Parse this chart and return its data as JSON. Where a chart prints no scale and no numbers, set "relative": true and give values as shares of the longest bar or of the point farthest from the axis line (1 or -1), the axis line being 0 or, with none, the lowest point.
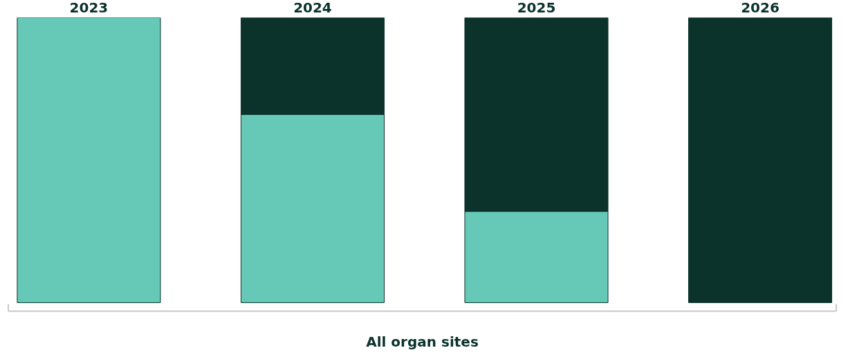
{
  "chart_data": {
    "type": "bar",
    "stacked": true,
    "relative": true,
    "categories": [
      "2023",
      "2024",
      "2025",
      "2026"
    ],
    "xlabel": "All organ sites",
    "grid": false,
    "series": [
      {
        "color": "#66c9b7",
        "values": [
          1,
          0.66,
          0.32,
          0
        ]
      },
      {
        "color": "#0b322b",
        "values": [
          0,
          0.34,
          0.68,
          1
        ]
      }
    ]
  }
}
